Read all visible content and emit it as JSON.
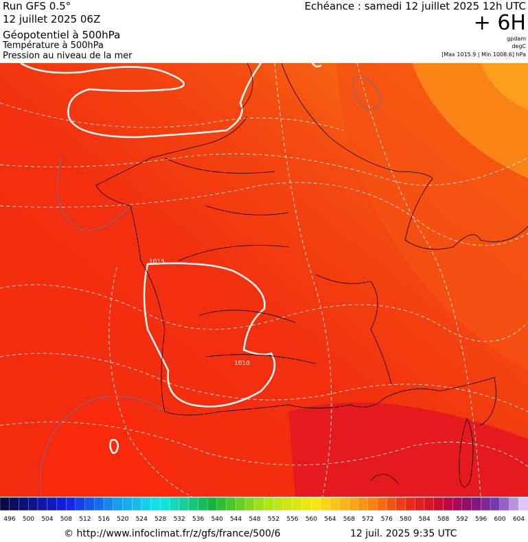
{
  "header": {
    "run": "Run GFS 0.5°",
    "run_date": "12 juillet 2025 06Z",
    "field": "Géopotentiel à 500hPa",
    "field2": "Température à 500hPa",
    "field3": "Pression au niveau de la mer",
    "valid": "Echéance : samedi 12 juillet 2025 12h UTC",
    "lead": "+ 6H",
    "unit1": "gpdam",
    "unit2": "degC",
    "pressure_range": "[Max 1015.9 | Min 1008.6] hPa"
  },
  "map": {
    "contour_labels": [
      "1015",
      "1010"
    ]
  },
  "colorbar": {
    "labels": [
      496,
      500,
      504,
      508,
      512,
      516,
      520,
      524,
      528,
      532,
      536,
      540,
      544,
      548,
      552,
      556,
      560,
      564,
      568,
      572,
      576,
      580,
      584,
      588,
      592,
      596,
      600,
      604
    ]
  },
  "footer": {
    "source": "© http://www.infoclimat.fr/z/gfs/france/500/6",
    "generated": "12 juil. 2025  9:35 UTC"
  }
}
